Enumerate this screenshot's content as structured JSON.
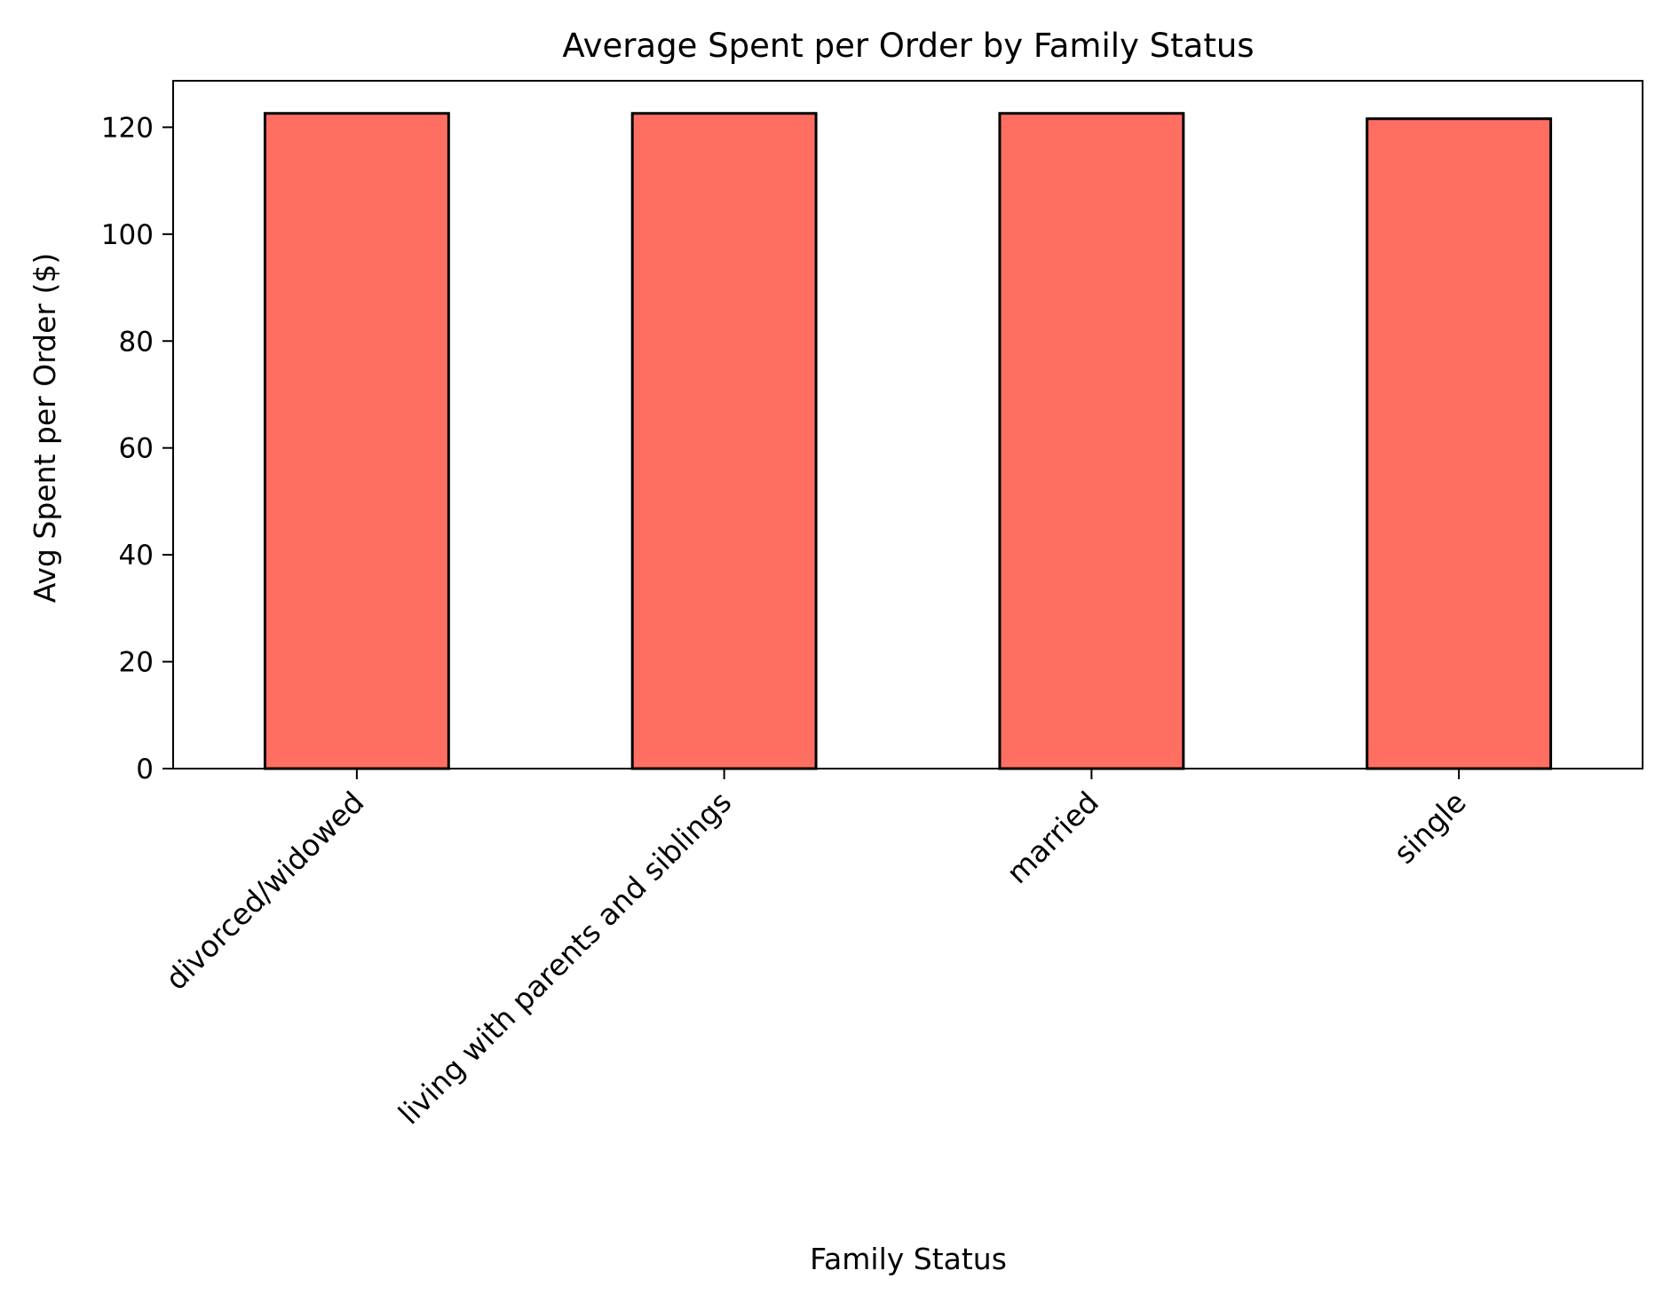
{
  "chart_data": {
    "type": "bar",
    "title": "Average Spent per Order by Family Status",
    "xlabel": "Family Status",
    "ylabel": "Avg Spent per Order ($)",
    "categories": [
      "divorced/widowed",
      "living with parents and siblings",
      "married",
      "single"
    ],
    "values": [
      122.6,
      122.6,
      122.6,
      121.6
    ],
    "ylim": [
      0,
      128.7
    ],
    "yticks": [
      0,
      20,
      40,
      60,
      80,
      100,
      120
    ],
    "grid": false,
    "colors": {
      "bar_fill": "#ff6f61",
      "bar_edge": "#000000"
    }
  }
}
